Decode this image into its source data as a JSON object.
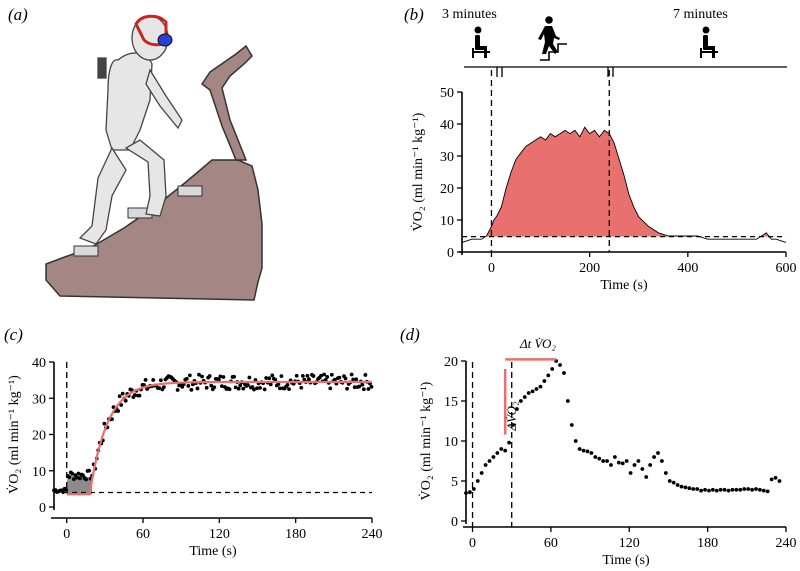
{
  "panels": {
    "a": {
      "label": "(a)"
    },
    "b": {
      "label": "(b)",
      "phase_labels": [
        "3 minutes",
        "7 minutes"
      ]
    },
    "c": {
      "label": "(c)"
    },
    "d": {
      "label": "(d)"
    }
  },
  "colors": {
    "fill": "#e8706e",
    "fit": "#e8706e",
    "mask": "#2a3fd6",
    "machine": "#a48784",
    "person": "#e6e6e6",
    "grey_fill": "#8c8c8c"
  },
  "chart_data": [
    {
      "panel": "b",
      "type": "area",
      "xlabel": "Time (s)",
      "ylabel": "V̇O₂ (ml min⁻¹ kg⁻¹)",
      "xlim": [
        -60,
        600
      ],
      "ylim": [
        0,
        50
      ],
      "xticks": [
        0,
        200,
        400,
        600
      ],
      "yticks": [
        0,
        10,
        20,
        30,
        40,
        50
      ],
      "vlines": [
        0,
        240
      ],
      "baseline": 4.8,
      "x": [
        -60,
        -40,
        -20,
        -10,
        0,
        5,
        10,
        20,
        30,
        40,
        50,
        60,
        70,
        80,
        90,
        100,
        110,
        120,
        130,
        140,
        150,
        160,
        170,
        180,
        190,
        200,
        210,
        220,
        230,
        240,
        250,
        260,
        270,
        280,
        290,
        300,
        320,
        340,
        360,
        380,
        400,
        420,
        440,
        460,
        480,
        500,
        520,
        540,
        550,
        560,
        570,
        580,
        600
      ],
      "y": [
        3,
        4,
        4,
        5,
        8,
        10,
        11,
        14,
        20,
        25,
        29,
        31,
        33,
        34,
        35,
        36,
        35,
        37,
        36,
        37,
        38,
        37,
        38,
        36,
        39,
        37,
        38,
        36,
        38,
        37,
        34,
        29,
        24,
        18,
        14,
        11,
        8,
        6,
        5,
        5,
        5,
        5,
        4,
        4,
        4,
        4,
        4,
        4,
        5,
        6,
        4,
        4,
        3
      ]
    },
    {
      "panel": "c",
      "type": "scatter",
      "xlabel": "Time (s)",
      "ylabel": "V̇O₂ (ml min⁻¹ kg⁻¹)",
      "xlim": [
        -10,
        240
      ],
      "ylim": [
        0,
        40
      ],
      "xticks": [
        0,
        60,
        120,
        180,
        240
      ],
      "yticks": [
        0,
        10,
        20,
        30,
        40
      ],
      "vlines": [
        0
      ],
      "baseline": 4,
      "fit": {
        "baseline": 3.5,
        "amplitude": 31,
        "delay": 18,
        "tau": 14
      },
      "series": [
        {
          "pattern": "noisy-exponential",
          "x_start": -10,
          "x_end": 240,
          "step": 1.2
        }
      ]
    },
    {
      "panel": "d",
      "type": "scatter",
      "xlabel": "Time (s)",
      "ylabel": "V̇O₂ (ml min⁻¹ kg⁻¹)",
      "xlim": [
        -5,
        240
      ],
      "ylim": [
        0,
        20
      ],
      "xticks": [
        0,
        60,
        120,
        180,
        240
      ],
      "yticks": [
        0,
        5,
        10,
        15,
        20
      ],
      "vlines": [
        0,
        30
      ],
      "annotations": [
        "ΔV̇O₂",
        "Δt V̇O₂"
      ],
      "x": [
        -5,
        -2,
        1,
        4,
        7,
        10,
        13,
        16,
        19,
        22,
        25,
        28,
        31,
        34,
        37,
        40,
        43,
        46,
        49,
        52,
        55,
        58,
        61,
        64,
        67,
        70,
        73,
        76,
        79,
        82,
        85,
        88,
        91,
        94,
        97,
        100,
        103,
        106,
        109,
        112,
        115,
        118,
        121,
        124,
        127,
        130,
        133,
        136,
        139,
        142,
        145,
        148,
        151,
        154,
        157,
        160,
        163,
        166,
        169,
        172,
        175,
        178,
        181,
        184,
        187,
        190,
        193,
        196,
        199,
        202,
        205,
        208,
        211,
        214,
        217,
        220,
        223,
        226,
        229,
        232,
        235
      ],
      "y": [
        3.5,
        3.6,
        4.0,
        5.0,
        6.0,
        7.0,
        7.5,
        8.0,
        8.5,
        9.0,
        8.8,
        9.8,
        12.0,
        14.0,
        15.0,
        15.5,
        16.0,
        16.2,
        16.5,
        16.8,
        17.5,
        18.2,
        19.0,
        20.0,
        19.5,
        18.5,
        15.0,
        12.0,
        10.0,
        9.0,
        8.8,
        8.7,
        8.5,
        8.0,
        7.8,
        7.5,
        7.5,
        7.0,
        8.0,
        7.3,
        7.2,
        7.5,
        6.0,
        7.0,
        7.5,
        6.5,
        5.5,
        7.0,
        8.0,
        8.5,
        7.5,
        6.0,
        5.0,
        4.8,
        4.5,
        4.3,
        4.2,
        4.1,
        4.0,
        4.0,
        3.8,
        3.9,
        3.8,
        3.9,
        3.8,
        3.9,
        3.9,
        3.8,
        3.9,
        3.9,
        3.9,
        4.0,
        4.0,
        3.9,
        4.0,
        3.9,
        3.8,
        3.7,
        5.2,
        5.4,
        5.0
      ]
    }
  ]
}
